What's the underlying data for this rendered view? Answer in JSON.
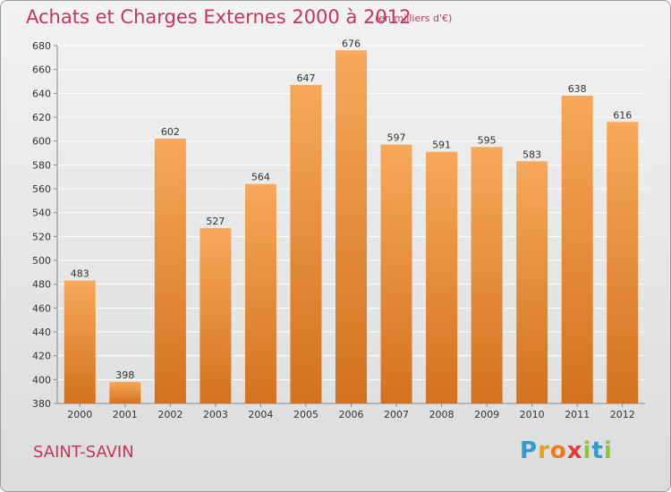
{
  "header": {
    "title": "Achats et Charges Externes 2000 à 2012",
    "subtitle": "(en milliers d'€)"
  },
  "footer": {
    "place": "SAINT-SAVIN",
    "logo_letters": [
      {
        "ch": "P",
        "color": "#2f9ad6"
      },
      {
        "ch": "r",
        "color": "#e8a21c"
      },
      {
        "ch": "o",
        "color": "#f07a1a"
      },
      {
        "ch": "x",
        "color": "#e23b3b"
      },
      {
        "ch": "i",
        "color": "#8cc63e"
      },
      {
        "ch": "t",
        "color": "#2f9ad6"
      },
      {
        "ch": "i",
        "color": "#8cc63e"
      }
    ]
  },
  "colors": {
    "bar_top": "#f7a85a",
    "bar_bottom": "#d2721f",
    "accent_text": "#c2375e",
    "grid": "#ffffff"
  },
  "chart_data": {
    "type": "bar",
    "title": "Achats et Charges Externes 2000 à 2012",
    "subtitle": "(en milliers d'€)",
    "categories": [
      "2000",
      "2001",
      "2002",
      "2003",
      "2004",
      "2005",
      "2006",
      "2007",
      "2008",
      "2009",
      "2010",
      "2011",
      "2012"
    ],
    "values": [
      483,
      398,
      602,
      527,
      564,
      647,
      676,
      597,
      591,
      595,
      583,
      638,
      616
    ],
    "ylim": [
      380,
      680
    ],
    "yticks": [
      380,
      400,
      420,
      440,
      460,
      480,
      500,
      520,
      540,
      560,
      580,
      600,
      620,
      640,
      660,
      680
    ],
    "grid": true,
    "xlabel": "",
    "ylabel": ""
  }
}
